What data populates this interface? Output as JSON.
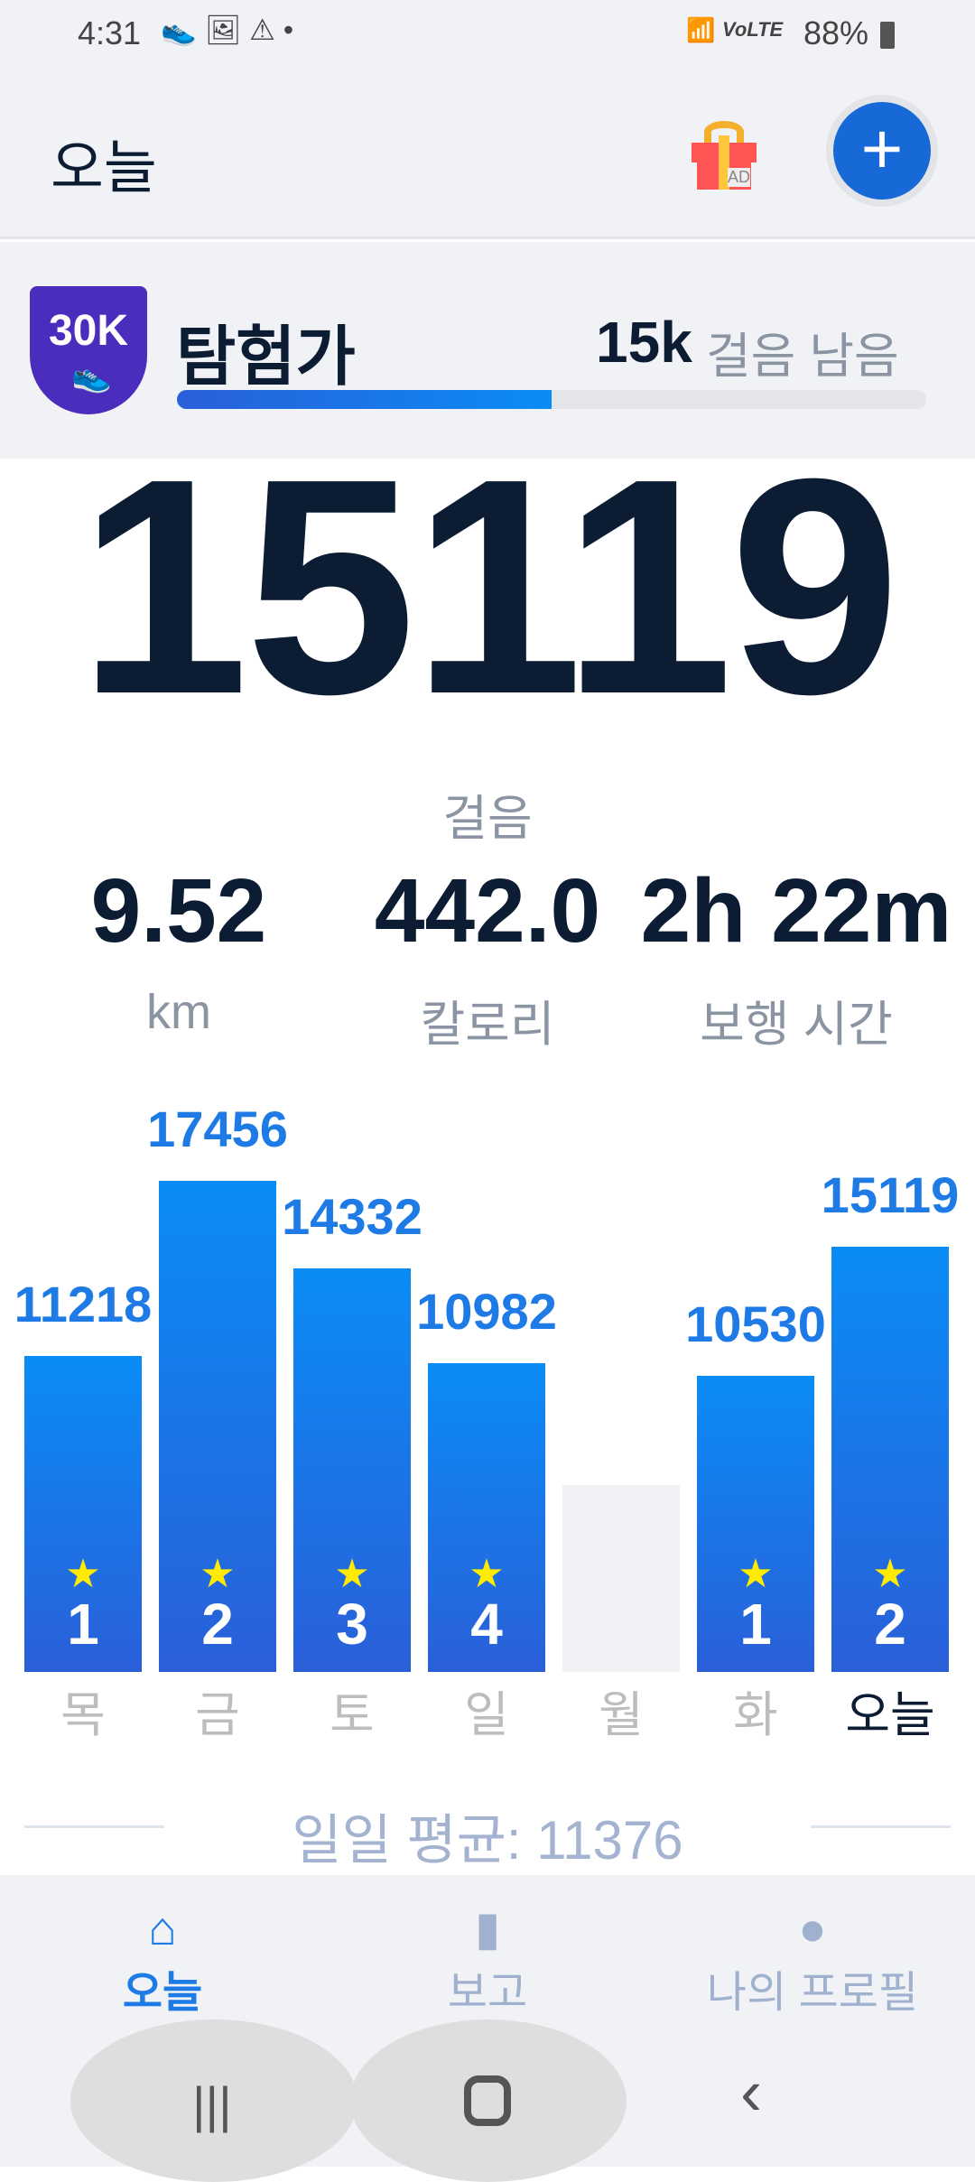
{
  "status": {
    "time": "4:31",
    "battery": "88%",
    "network": "VoLTE"
  },
  "header": {
    "title": "오늘",
    "gift_badge": "AD"
  },
  "level": {
    "badge": "30K",
    "name": "탐험가",
    "remaining_value": "15k",
    "remaining_label": "걸음 남음",
    "progress": 0.5
  },
  "today": {
    "steps": "15119",
    "steps_label": "걸음"
  },
  "stats": [
    {
      "value": "9.52",
      "label": "km"
    },
    {
      "value": "442.0",
      "label": "칼로리"
    },
    {
      "value": "2h 22m",
      "label": "보행 시간"
    }
  ],
  "chart_data": {
    "type": "bar",
    "categories": [
      "목",
      "금",
      "토",
      "일",
      "월",
      "화",
      "오늘"
    ],
    "values": [
      11218,
      17456,
      14332,
      10982,
      null,
      10530,
      15119
    ],
    "star_counts": [
      "1",
      "2",
      "3",
      "4",
      null,
      "1",
      "2"
    ],
    "value_labels": [
      "11218",
      "17456",
      "14332",
      "10982",
      "",
      "10530",
      "15119"
    ]
  },
  "average": {
    "label": "일일 평균: 11376"
  },
  "tabs": [
    {
      "label": "오늘",
      "icon": "home-icon",
      "active": true
    },
    {
      "label": "보고",
      "icon": "bar-chart-icon"
    },
    {
      "label": "나의 프로필",
      "icon": "person-icon"
    }
  ],
  "colors": {
    "accent": "#1e7be6",
    "bar_top": "#0a8cf7",
    "bar_bottom": "#2a5fd8",
    "badge": "#4a2dbd",
    "text": "#0b1c33"
  }
}
